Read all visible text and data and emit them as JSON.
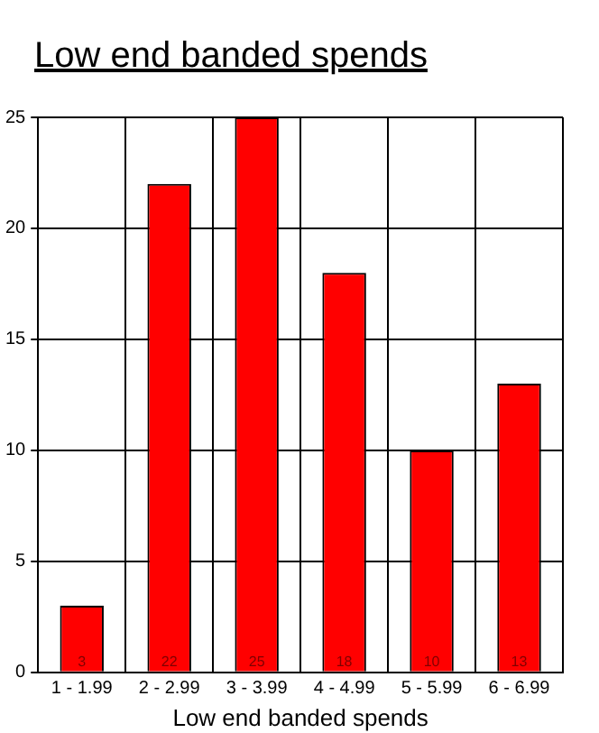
{
  "chart_data": {
    "type": "bar",
    "title": "Low end banded spends",
    "xlabel": "Low end banded spends",
    "categories": [
      "1 - 1.99",
      "2 - 2.99",
      "3 - 3.99",
      "4 - 4.99",
      "5 - 5.99",
      "6 - 6.99"
    ],
    "values": [
      3,
      22,
      25,
      18,
      10,
      13
    ],
    "color": "#ff0000",
    "ylim": [
      0,
      25
    ],
    "yticks": [
      0,
      5,
      10,
      15,
      20,
      25
    ],
    "grid": true,
    "data_labels": true,
    "legend": false
  }
}
